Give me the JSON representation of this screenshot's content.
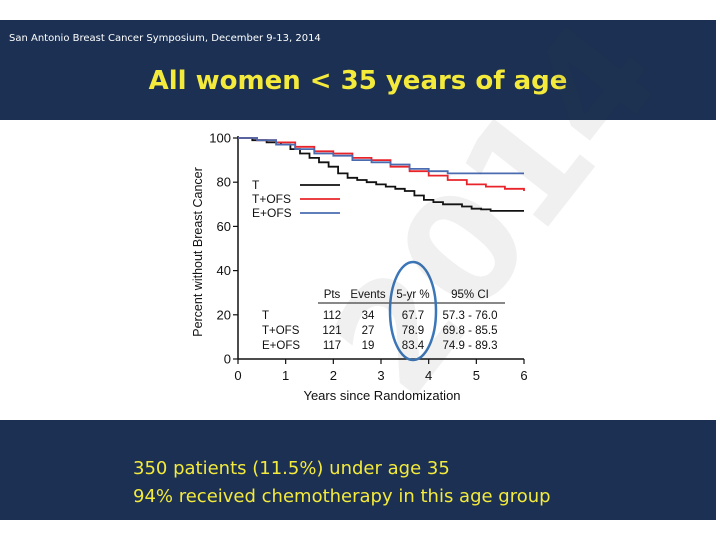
{
  "header": {
    "conference": "San Antonio Breast Cancer Symposium, December 9-13, 2014",
    "title": "All women < 35 years of age"
  },
  "footer": {
    "line1": "350 patients (11.5%) under age 35",
    "line2": "94% received chemotherapy in this age group"
  },
  "watermark": "2014",
  "colors": {
    "background_band": "#1b3052",
    "title_text": "#f3ea3c",
    "T": "#111111",
    "T+OFS": "#e8242a",
    "E+OFS": "#4a6bb0",
    "highlight_oval": "#3a76b8"
  },
  "chart_data": {
    "type": "line",
    "xlabel": "Years since Randomization",
    "ylabel": "Percent without Breast Cancer",
    "xlim": [
      0,
      6
    ],
    "ylim": [
      0,
      100
    ],
    "xticks": [
      "0",
      "1",
      "2",
      "3",
      "4",
      "5",
      "6"
    ],
    "yticks": [
      "0",
      "20",
      "40",
      "60",
      "80",
      "100"
    ],
    "legend_position": "upper-left",
    "series": [
      {
        "name": "T",
        "color": "#111111",
        "x": [
          0,
          0.3,
          0.6,
          0.9,
          1.1,
          1.3,
          1.5,
          1.7,
          1.9,
          2.1,
          2.3,
          2.5,
          2.7,
          2.9,
          3.1,
          3.3,
          3.5,
          3.7,
          3.9,
          4.1,
          4.3,
          4.5,
          4.7,
          4.9,
          5.1,
          5.3,
          6.0
        ],
        "y": [
          100,
          99,
          98,
          97,
          95,
          93,
          91,
          89,
          87,
          84,
          82,
          81,
          80,
          79,
          78,
          77,
          76,
          74,
          72,
          71,
          70,
          70,
          69,
          68,
          67.7,
          67,
          67
        ]
      },
      {
        "name": "T+OFS",
        "color": "#e8242a",
        "x": [
          0,
          0.4,
          0.8,
          1.2,
          1.6,
          2.0,
          2.4,
          2.8,
          3.2,
          3.6,
          4.0,
          4.4,
          4.8,
          5.2,
          5.6,
          6.0
        ],
        "y": [
          100,
          99,
          98,
          96,
          94,
          93,
          91,
          90,
          87,
          85,
          83,
          81,
          79,
          78,
          77,
          76
        ]
      },
      {
        "name": "E+OFS",
        "color": "#4a6bb0",
        "x": [
          0,
          0.4,
          0.8,
          1.2,
          1.6,
          2.0,
          2.4,
          2.8,
          3.2,
          3.6,
          4.0,
          4.4,
          4.8,
          5.2,
          6.0
        ],
        "y": [
          100,
          99,
          97,
          95,
          93,
          92,
          90,
          89,
          88,
          86,
          85,
          84,
          84,
          84,
          84
        ]
      }
    ],
    "table": {
      "columns": [
        "",
        "Pts",
        "Events",
        "5-yr %",
        "95% CI"
      ],
      "rows": [
        [
          "T",
          "112",
          "34",
          "67.7",
          "57.3 - 76.0"
        ],
        [
          "T+OFS",
          "121",
          "27",
          "78.9",
          "69.8 - 85.5"
        ],
        [
          "E+OFS",
          "117",
          "19",
          "83.4",
          "74.9 - 89.3"
        ]
      ],
      "highlighted_column": "5-yr %"
    }
  }
}
